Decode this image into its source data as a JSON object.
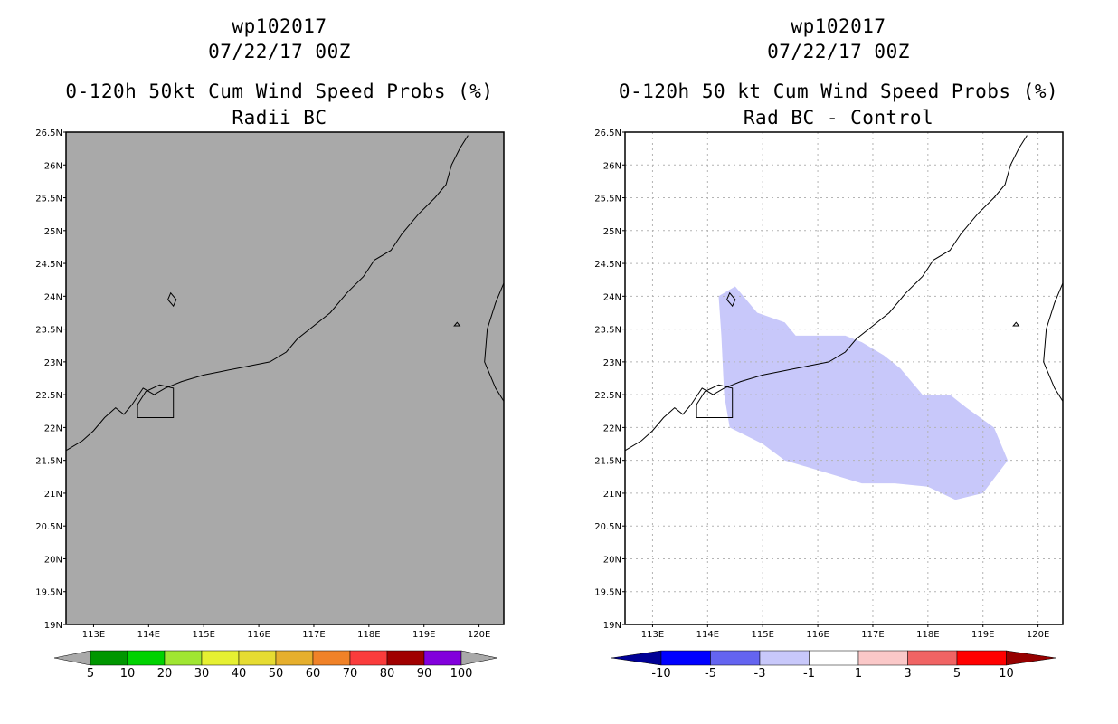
{
  "panels": [
    {
      "storm_id": "wp102017",
      "datetime": "07/22/17 00Z",
      "product": "0-120h 50kt Cum Wind Speed Probs (%)",
      "subtitle": "Radii BC",
      "colors": {
        "background": "#a9a9a9",
        "coast": "#000000"
      },
      "colorbar": {
        "labels": [
          "5",
          "10",
          "20",
          "30",
          "40",
          "50",
          "60",
          "70",
          "80",
          "90",
          "100"
        ],
        "colors": [
          "#009600",
          "#00d200",
          "#a0e632",
          "#e6f032",
          "#e6dc32",
          "#e6af2d",
          "#f08228",
          "#fa3c3c",
          "#a00000",
          "#8200dc"
        ],
        "end_color": "#a9a9a9"
      }
    },
    {
      "storm_id": "wp102017",
      "datetime": "07/22/17 00Z",
      "product": "0-120h 50 kt Cum Wind Speed Probs (%)",
      "subtitle": "Rad BC - Control",
      "colors": {
        "background": "#ffffff",
        "coast": "#000000",
        "shade": "#c8c8fa"
      },
      "colorbar": {
        "labels": [
          "-10",
          "-5",
          "-3",
          "-1",
          "1",
          "3",
          "5",
          "10"
        ],
        "colors": [
          "#0000ff",
          "#6464f0",
          "#c8c8fa",
          "#ffffff",
          "#fac8c8",
          "#f06464",
          "#ff0000"
        ],
        "end_left": "#000096",
        "end_right": "#960000"
      },
      "shaded_region_lonlat": [
        [
          114.2,
          24.0
        ],
        [
          114.5,
          24.15
        ],
        [
          114.9,
          23.75
        ],
        [
          115.4,
          23.6
        ],
        [
          115.6,
          23.4
        ],
        [
          116.0,
          23.4
        ],
        [
          116.5,
          23.4
        ],
        [
          116.8,
          23.3
        ],
        [
          117.2,
          23.1
        ],
        [
          117.5,
          22.9
        ],
        [
          117.9,
          22.5
        ],
        [
          118.4,
          22.5
        ],
        [
          118.7,
          22.3
        ],
        [
          119.2,
          22.0
        ],
        [
          119.45,
          21.5
        ],
        [
          119.0,
          21.0
        ],
        [
          118.5,
          20.9
        ],
        [
          118.0,
          21.1
        ],
        [
          117.4,
          21.15
        ],
        [
          116.8,
          21.15
        ],
        [
          116.0,
          21.35
        ],
        [
          115.4,
          21.5
        ],
        [
          115.0,
          21.75
        ],
        [
          114.4,
          22.0
        ],
        [
          114.3,
          22.5
        ],
        [
          114.25,
          23.4
        ]
      ]
    }
  ],
  "axes": {
    "lat_labels": [
      "26.5N",
      "26N",
      "25.5N",
      "25N",
      "24.5N",
      "24N",
      "23.5N",
      "23N",
      "22.5N",
      "22N",
      "21.5N",
      "21N",
      "20.5N",
      "20N",
      "19.5N",
      "19N"
    ],
    "lat_values": [
      26.5,
      26,
      25.5,
      25,
      24.5,
      24,
      23.5,
      23,
      22.5,
      22,
      21.5,
      21,
      20.5,
      20,
      19.5,
      19
    ],
    "lon_labels": [
      "113E",
      "114E",
      "115E",
      "116E",
      "117E",
      "118E",
      "119E",
      "120E"
    ],
    "lon_values": [
      113,
      114,
      115,
      116,
      117,
      118,
      119,
      120
    ],
    "lon_range": [
      112.5,
      120.45
    ],
    "lat_range": [
      19,
      26.5
    ]
  },
  "coastline_lonlat": [
    [
      112.5,
      21.65
    ],
    [
      112.8,
      21.8
    ],
    [
      113.0,
      21.95
    ],
    [
      113.2,
      22.15
    ],
    [
      113.4,
      22.3
    ],
    [
      113.55,
      22.2
    ],
    [
      113.7,
      22.35
    ],
    [
      113.9,
      22.6
    ],
    [
      114.1,
      22.5
    ],
    [
      114.3,
      22.6
    ],
    [
      114.6,
      22.7
    ],
    [
      115.0,
      22.8
    ],
    [
      115.3,
      22.85
    ],
    [
      115.6,
      22.9
    ],
    [
      115.9,
      22.95
    ],
    [
      116.2,
      23.0
    ],
    [
      116.5,
      23.15
    ],
    [
      116.7,
      23.35
    ],
    [
      117.0,
      23.55
    ],
    [
      117.3,
      23.75
    ],
    [
      117.6,
      24.05
    ],
    [
      117.9,
      24.3
    ],
    [
      118.1,
      24.55
    ],
    [
      118.4,
      24.7
    ],
    [
      118.6,
      24.95
    ],
    [
      118.9,
      25.25
    ],
    [
      119.2,
      25.5
    ],
    [
      119.4,
      25.7
    ],
    [
      119.5,
      26.0
    ],
    [
      119.65,
      26.25
    ],
    [
      119.8,
      26.45
    ]
  ],
  "islands_lonlat": [
    [
      [
        114.35,
        23.95
      ],
      [
        114.45,
        23.85
      ],
      [
        114.5,
        23.95
      ],
      [
        114.4,
        24.05
      ]
    ],
    [
      [
        119.55,
        23.55
      ],
      [
        119.65,
        23.55
      ],
      [
        119.6,
        23.6
      ]
    ]
  ],
  "taiwan_lonlat": [
    [
      120.45,
      24.2
    ],
    [
      120.3,
      23.9
    ],
    [
      120.15,
      23.5
    ],
    [
      120.1,
      23.0
    ],
    [
      120.3,
      22.6
    ],
    [
      120.45,
      22.4
    ]
  ],
  "hk_box_lonlat": [
    [
      113.8,
      22.15
    ],
    [
      114.45,
      22.15
    ],
    [
      114.45,
      22.6
    ],
    [
      114.2,
      22.65
    ],
    [
      113.95,
      22.55
    ],
    [
      113.8,
      22.35
    ]
  ]
}
